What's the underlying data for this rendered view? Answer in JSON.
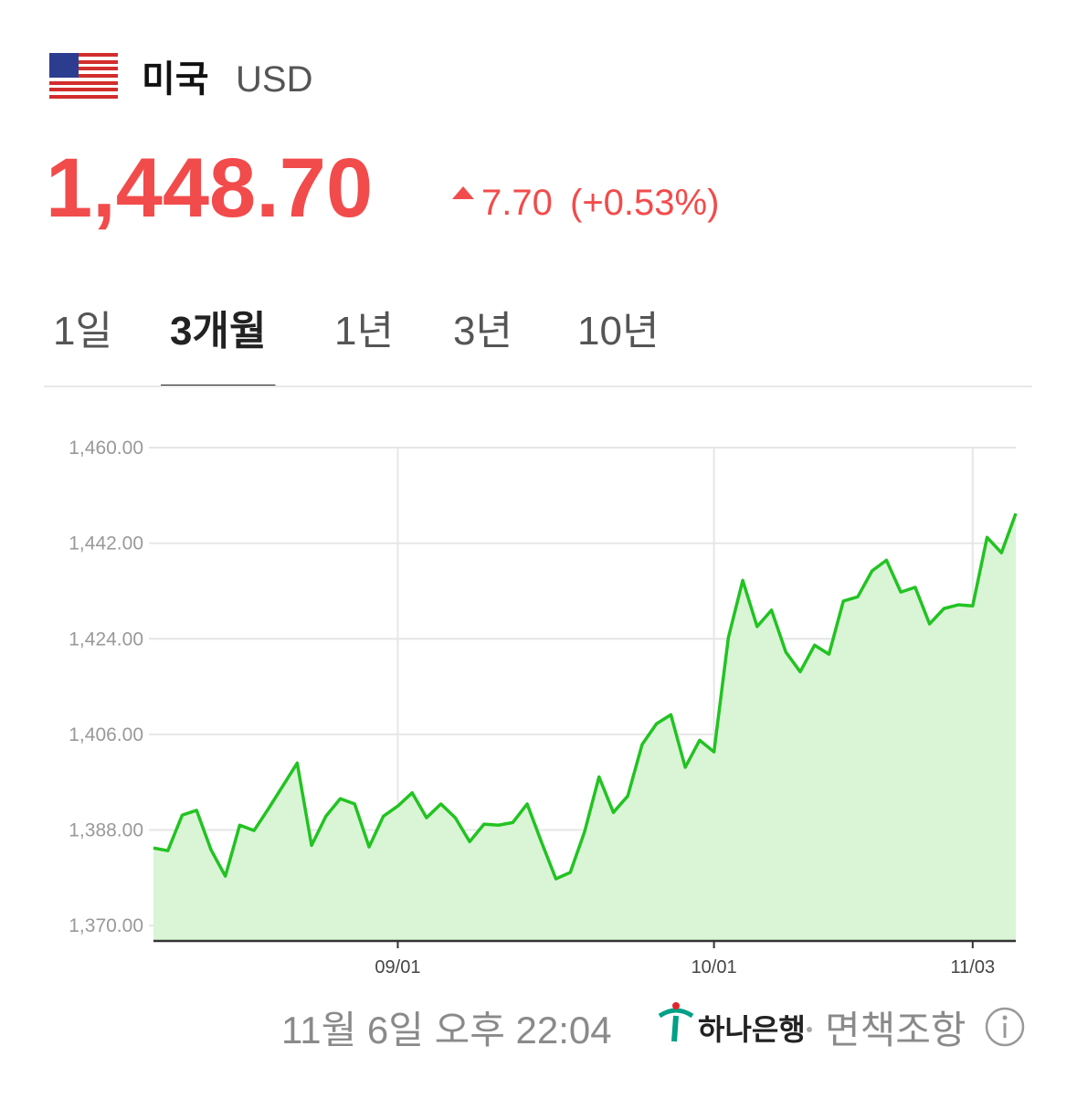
{
  "header": {
    "country": "미국",
    "currency": "USD",
    "price": "1,448.70",
    "change": "7.70",
    "change_percent": "(+0.53%)"
  },
  "tabs": [
    {
      "label": "1일"
    },
    {
      "label": "3개월",
      "selected": true
    },
    {
      "label": "1년"
    },
    {
      "label": "3년"
    },
    {
      "label": "10년"
    }
  ],
  "chart_data": {
    "type": "line",
    "categories": [
      null,
      null,
      null,
      null,
      null,
      null,
      null,
      null,
      null,
      null,
      null,
      null,
      null,
      null,
      null,
      null,
      null,
      "09/01",
      null,
      null,
      null,
      null,
      null,
      null,
      null,
      null,
      null,
      null,
      null,
      null,
      null,
      null,
      null,
      null,
      null,
      null,
      null,
      null,
      null,
      "10/01",
      null,
      null,
      null,
      null,
      null,
      null,
      null,
      null,
      null,
      null,
      null,
      null,
      null,
      null,
      null,
      null,
      null,
      "11/03",
      null,
      null,
      null
    ],
    "series": [
      {
        "color": "#22c322",
        "fill": "#d9f5d6",
        "values": [
          1384.6,
          1384.1,
          1390.8,
          1391.7,
          1384.3,
          1379.3,
          1388.9,
          1387.9,
          1392.0,
          1396.3,
          1400.6,
          1385.1,
          1390.6,
          1393.9,
          1392.9,
          1384.8,
          1390.6,
          1392.5,
          1395.0,
          1390.3,
          1392.9,
          1390.3,
          1385.8,
          1389.1,
          1388.9,
          1389.4,
          1392.9,
          1385.7,
          1378.8,
          1380.0,
          1387.7,
          1398.0,
          1391.3,
          1394.4,
          1404.1,
          1408.0,
          1409.7,
          1399.8,
          1404.9,
          1402.7,
          1424.2,
          1435.0,
          1426.3,
          1429.4,
          1421.5,
          1417.8,
          1422.8,
          1421.1,
          1431.1,
          1431.9,
          1436.8,
          1438.8,
          1432.8,
          1433.7,
          1426.8,
          1429.7,
          1430.4,
          1430.2,
          1443.1,
          1440.2,
          1447.6
        ]
      }
    ],
    "ylim": [
      1367.1,
      1460
    ],
    "yticks": [
      {
        "value": 1370,
        "label": "1,370.00"
      },
      {
        "value": 1388,
        "label": "1,388.00"
      },
      {
        "value": 1406,
        "label": "1,406.00"
      },
      {
        "value": 1424,
        "label": "1,424.00"
      },
      {
        "value": 1442,
        "label": "1,442.00"
      },
      {
        "value": 1460,
        "label": "1,460.00"
      }
    ],
    "grid": true
  },
  "footer": {
    "timestamp": "11월 6일 오후 22:04",
    "bank": "하나은행",
    "disclaimer": "면책조항"
  }
}
